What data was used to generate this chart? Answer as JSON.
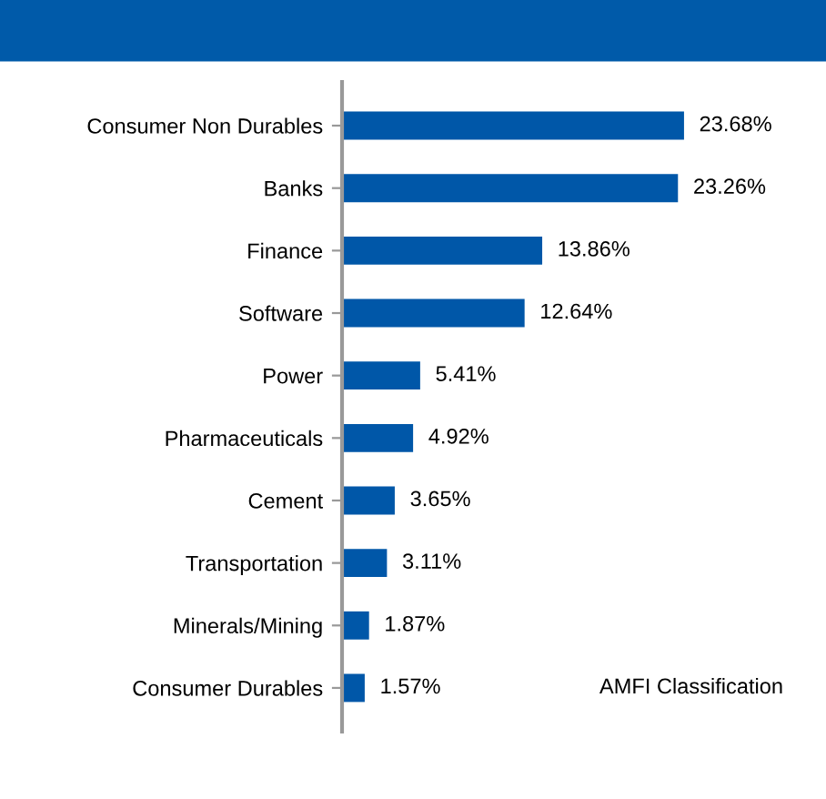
{
  "chart_data": {
    "type": "bar",
    "orientation": "horizontal",
    "categories": [
      "Consumer Non Durables",
      "Banks",
      "Finance",
      "Software",
      "Power",
      "Pharmaceuticals",
      "Cement",
      "Transportation",
      "Minerals/Mining",
      "Consumer Durables"
    ],
    "values": [
      23.68,
      23.26,
      13.86,
      12.64,
      5.41,
      4.92,
      3.65,
      3.11,
      1.87,
      1.57
    ],
    "value_labels": [
      "23.68%",
      "23.26%",
      "13.86%",
      "12.64%",
      "5.41%",
      "4.92%",
      "3.65%",
      "3.11%",
      "1.87%",
      "1.57%"
    ],
    "color": "#0057a8",
    "annotations": [
      "AMFI Classification"
    ],
    "grid": false,
    "tick_labels": "y"
  }
}
